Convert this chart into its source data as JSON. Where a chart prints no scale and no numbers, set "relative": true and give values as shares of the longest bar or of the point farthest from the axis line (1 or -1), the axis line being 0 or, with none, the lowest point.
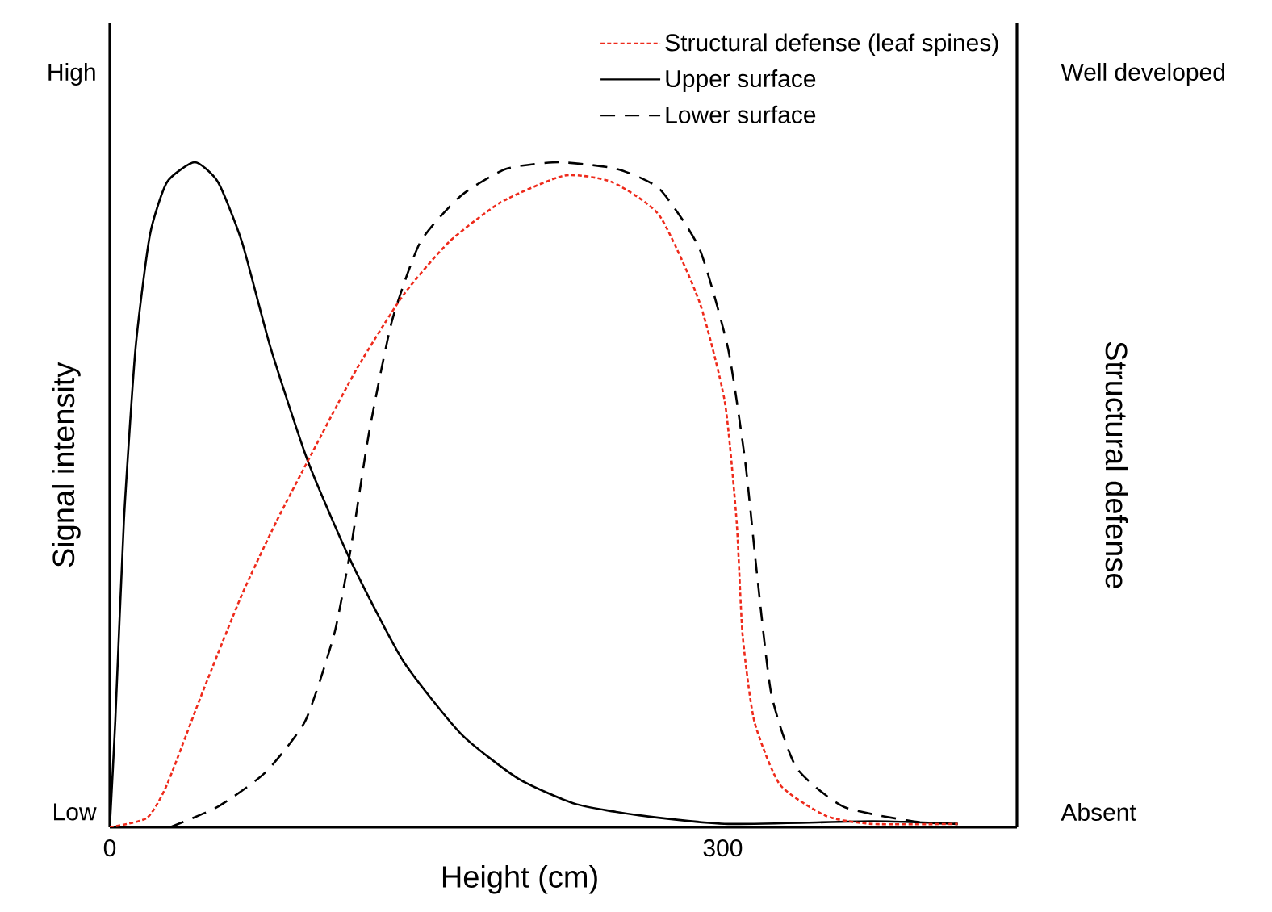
{
  "chart_data": {
    "type": "line",
    "relative": true,
    "xlabel": "Height (cm)",
    "ylabel": "Signal intensity",
    "y2label": "Structural defense",
    "xlim": [
      0,
      444
    ],
    "xticks": [
      0,
      300
    ],
    "annotations": [
      "High",
      "Low",
      "Well developed",
      "Absent"
    ],
    "legend": "top right",
    "marker": "none",
    "series": [
      {
        "name": "Structural defense (leaf spines)",
        "color": "#ee2a1b",
        "axis": "y2",
        "line_style": "dotted",
        "x": [
          0,
          18.2,
          28,
          45,
          64.7,
          81.6,
          98.5,
          121,
          143.6,
          166,
          191.5,
          222.6,
          246,
          269,
          288.6,
          301,
          306.8,
          309.7,
          315.4,
          328,
          350.6,
          373,
          415
        ],
        "values": [
          0,
          0.014,
          0.064,
          0.2,
          0.35,
          0.46,
          0.56,
          0.69,
          0.8,
          0.88,
          0.94,
          0.98,
          0.97,
          0.92,
          0.79,
          0.64,
          0.46,
          0.29,
          0.16,
          0.064,
          0.017,
          0.005,
          0.005
        ]
      },
      {
        "name": "Upper surface",
        "color": "#000000",
        "line_style": "solid",
        "x": [
          0,
          2.7,
          6.9,
          12.6,
          19.6,
          28,
          41.6,
          53,
          64.7,
          78.8,
          97,
          118,
          143.6,
          172,
          200,
          228,
          259,
          302.6,
          373,
          415
        ],
        "values": [
          0,
          0.16,
          0.46,
          0.72,
          0.89,
          0.97,
          1,
          0.97,
          0.88,
          0.72,
          0.55,
          0.4,
          0.25,
          0.14,
          0.073,
          0.035,
          0.018,
          0.005,
          0.009,
          0.005
        ]
      },
      {
        "name": "Lower surface",
        "color": "#000000",
        "line_style": "dashed",
        "x": [
          29.5,
          53,
          76,
          95.7,
          109.8,
          118,
          126.7,
          138,
          152,
          172,
          194,
          219.6,
          248,
          269,
          288.6,
          302.6,
          311,
          316.8,
          323.8,
          336,
          359,
          393,
          415
        ],
        "values": [
          0,
          0.031,
          0.082,
          0.16,
          0.29,
          0.42,
          0.59,
          0.76,
          0.88,
          0.95,
          0.99,
          1,
          0.99,
          0.96,
          0.87,
          0.72,
          0.55,
          0.38,
          0.2,
          0.09,
          0.031,
          0.009,
          0.005
        ]
      }
    ]
  }
}
